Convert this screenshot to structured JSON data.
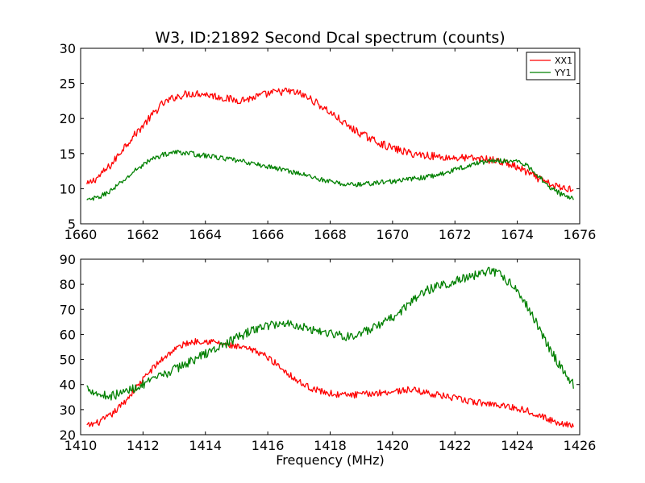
{
  "chart_data": [
    {
      "type": "line",
      "title": "W3, ID:21892 Second Dcal spectrum (counts)",
      "xlabel": "",
      "ylabel": "",
      "xlim": [
        1660,
        1676
      ],
      "ylim": [
        5,
        30
      ],
      "xticks": [
        "1660",
        "1662",
        "1664",
        "1666",
        "1668",
        "1670",
        "1672",
        "1674",
        "1676"
      ],
      "yticks": [
        "5",
        "10",
        "15",
        "20",
        "25",
        "30"
      ],
      "legend": {
        "placement": "top-right",
        "entries": [
          "XX1",
          "YY1"
        ]
      },
      "series": [
        {
          "name": "XX1",
          "color": "#ff0000",
          "x": [
            1660.2,
            1660.6,
            1661.0,
            1661.4,
            1661.8,
            1662.2,
            1662.6,
            1663.0,
            1663.4,
            1663.8,
            1664.2,
            1664.6,
            1665.0,
            1665.4,
            1665.8,
            1666.2,
            1666.6,
            1667.0,
            1667.4,
            1667.8,
            1668.2,
            1668.6,
            1669.0,
            1669.4,
            1669.8,
            1670.2,
            1670.6,
            1671.0,
            1671.4,
            1671.8,
            1672.2,
            1672.6,
            1673.0,
            1673.4,
            1673.8,
            1674.2,
            1674.6,
            1675.0,
            1675.4,
            1675.8
          ],
          "values": [
            10.5,
            11.8,
            13.5,
            16.0,
            18.0,
            20.0,
            22.0,
            23.0,
            23.5,
            23.6,
            23.3,
            22.9,
            22.6,
            22.8,
            23.3,
            23.7,
            23.9,
            23.6,
            22.7,
            21.5,
            20.2,
            18.8,
            17.8,
            16.9,
            16.1,
            15.5,
            15.0,
            14.8,
            14.6,
            14.4,
            14.4,
            14.3,
            14.2,
            13.9,
            13.4,
            12.6,
            11.6,
            10.7,
            10.1,
            10.0
          ],
          "noise": 0.55
        },
        {
          "name": "YY1",
          "color": "#008000",
          "x": [
            1660.2,
            1660.6,
            1661.0,
            1661.4,
            1661.8,
            1662.2,
            1662.6,
            1663.0,
            1663.4,
            1663.8,
            1664.2,
            1664.6,
            1665.0,
            1665.4,
            1665.8,
            1666.2,
            1666.6,
            1667.0,
            1667.4,
            1667.8,
            1668.2,
            1668.6,
            1669.0,
            1669.4,
            1669.8,
            1670.2,
            1670.6,
            1671.0,
            1671.4,
            1671.8,
            1672.2,
            1672.6,
            1673.0,
            1673.4,
            1673.8,
            1674.2,
            1674.6,
            1675.0,
            1675.4,
            1675.8
          ],
          "values": [
            8.3,
            8.8,
            9.8,
            11.2,
            12.8,
            14.0,
            14.8,
            15.2,
            15.1,
            14.8,
            14.6,
            14.3,
            14.0,
            13.7,
            13.3,
            13.0,
            12.6,
            12.2,
            11.7,
            11.2,
            10.8,
            10.6,
            10.6,
            10.8,
            11.0,
            11.1,
            11.4,
            11.6,
            11.9,
            12.4,
            13.0,
            13.5,
            13.9,
            14.0,
            14.0,
            13.6,
            12.2,
            10.4,
            9.2,
            8.6
          ],
          "noise": 0.35
        }
      ]
    },
    {
      "type": "line",
      "title": "",
      "xlabel": "Frequency (MHz)",
      "ylabel": "",
      "xlim": [
        1410,
        1426
      ],
      "ylim": [
        20,
        90
      ],
      "xticks": [
        "1410",
        "1412",
        "1414",
        "1416",
        "1418",
        "1420",
        "1422",
        "1424",
        "1426"
      ],
      "yticks": [
        "20",
        "30",
        "40",
        "50",
        "60",
        "70",
        "80",
        "90"
      ],
      "series": [
        {
          "name": "XX1",
          "color": "#ff0000",
          "x": [
            1410.2,
            1410.6,
            1411.0,
            1411.4,
            1411.8,
            1412.2,
            1412.6,
            1413.0,
            1413.4,
            1413.8,
            1414.2,
            1414.6,
            1415.0,
            1415.4,
            1415.8,
            1416.2,
            1416.6,
            1417.0,
            1417.4,
            1417.8,
            1418.2,
            1418.6,
            1419.0,
            1419.4,
            1419.8,
            1420.2,
            1420.6,
            1421.0,
            1421.4,
            1421.8,
            1422.2,
            1422.6,
            1423.0,
            1423.4,
            1423.8,
            1424.2,
            1424.6,
            1425.0,
            1425.4,
            1425.8
          ],
          "values": [
            23.5,
            25.0,
            28.0,
            33.0,
            39.0,
            45.0,
            50.0,
            54.0,
            56.5,
            57.5,
            57.2,
            56.0,
            55.0,
            54.0,
            52.5,
            49.0,
            45.0,
            41.0,
            38.5,
            37.0,
            36.0,
            35.8,
            36.0,
            36.5,
            37.0,
            37.5,
            38.0,
            37.0,
            36.0,
            35.0,
            34.0,
            33.0,
            32.5,
            32.0,
            31.0,
            30.0,
            28.5,
            26.0,
            24.5,
            24.0
          ],
          "noise": 1.3
        },
        {
          "name": "YY1",
          "color": "#008000",
          "x": [
            1410.2,
            1410.6,
            1411.0,
            1411.4,
            1411.8,
            1412.2,
            1412.6,
            1413.0,
            1413.4,
            1413.8,
            1414.2,
            1414.6,
            1415.0,
            1415.4,
            1415.8,
            1416.2,
            1416.6,
            1417.0,
            1417.4,
            1417.8,
            1418.2,
            1418.6,
            1419.0,
            1419.4,
            1419.8,
            1420.2,
            1420.6,
            1421.0,
            1421.4,
            1421.8,
            1422.2,
            1422.6,
            1423.0,
            1423.4,
            1423.8,
            1424.2,
            1424.6,
            1425.0,
            1425.4,
            1425.8
          ],
          "values": [
            39.0,
            36.0,
            35.5,
            37.0,
            39.0,
            41.0,
            43.5,
            46.0,
            48.5,
            51.0,
            53.5,
            56.0,
            58.5,
            61.0,
            63.0,
            64.0,
            64.5,
            63.5,
            62.0,
            61.0,
            60.0,
            59.0,
            60.5,
            62.5,
            65.0,
            68.5,
            73.0,
            77.0,
            79.0,
            80.5,
            82.0,
            83.5,
            85.0,
            84.5,
            80.0,
            74.0,
            65.0,
            55.0,
            47.0,
            40.0
          ],
          "noise": 1.8
        }
      ]
    }
  ]
}
